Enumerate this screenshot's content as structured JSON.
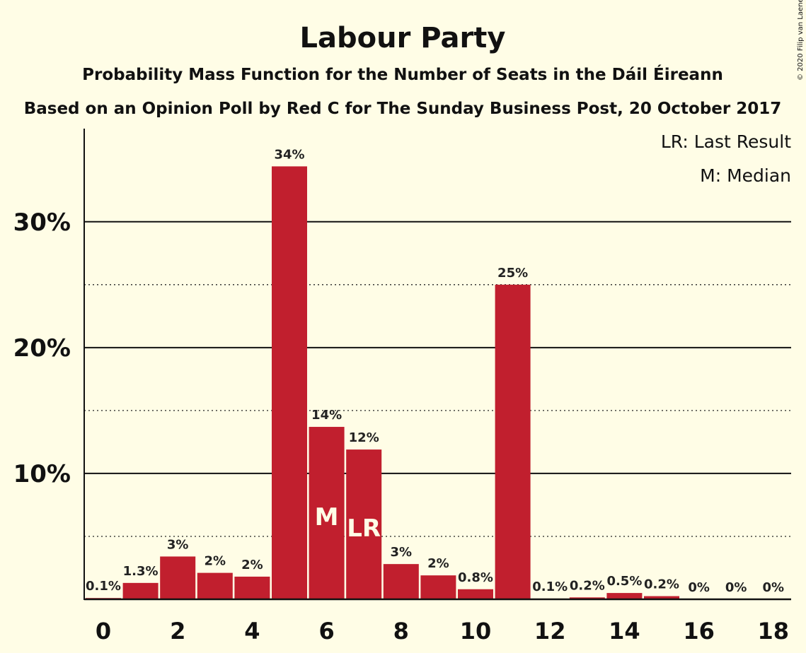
{
  "chart_data": {
    "type": "bar",
    "title": "Labour Party",
    "subtitle": "Probability Mass Function for the Number of Seats in the Dáil Éireann",
    "subtitle2": "Based on an Opinion Poll by Red C for The Sunday Business Post, 20 October 2017",
    "copyright": "© 2020 Filip van Laenen",
    "legend": [
      "LR: Last Result",
      "M: Median"
    ],
    "legend_position": "top-right",
    "categories": [
      0,
      1,
      2,
      3,
      4,
      5,
      6,
      7,
      8,
      9,
      10,
      11,
      12,
      13,
      14,
      15,
      16,
      17,
      18
    ],
    "values": [
      0.1,
      1.3,
      3.4,
      2.1,
      1.8,
      34.4,
      13.7,
      11.9,
      2.8,
      1.9,
      0.8,
      25.0,
      0.06,
      0.15,
      0.5,
      0.25,
      0,
      0,
      0
    ],
    "value_labels": [
      "0.1%",
      "1.3%",
      "3%",
      "2%",
      "2%",
      "34%",
      "14%",
      "12%",
      "3%",
      "2%",
      "0.8%",
      "25%",
      "0.1%",
      "0.2%",
      "0.5%",
      "0.2%",
      "0%",
      "0%",
      "0%"
    ],
    "median_seat": 6,
    "median_label": "M",
    "last_result_seat": 7,
    "last_result_label": "LR",
    "x_tick_labels": [
      "0",
      "2",
      "4",
      "6",
      "8",
      "10",
      "12",
      "14",
      "16",
      "18"
    ],
    "x_ticks": [
      0,
      2,
      4,
      6,
      8,
      10,
      12,
      14,
      16,
      18
    ],
    "y_ticks": [
      10,
      20,
      30
    ],
    "y_tick_labels": [
      "10%",
      "20%",
      "30%"
    ],
    "y_minor_gridlines": [
      5,
      15,
      25
    ],
    "ylim": [
      0,
      37.4
    ],
    "bar_color": "#c11f2e",
    "background_color": "#fffde6"
  }
}
